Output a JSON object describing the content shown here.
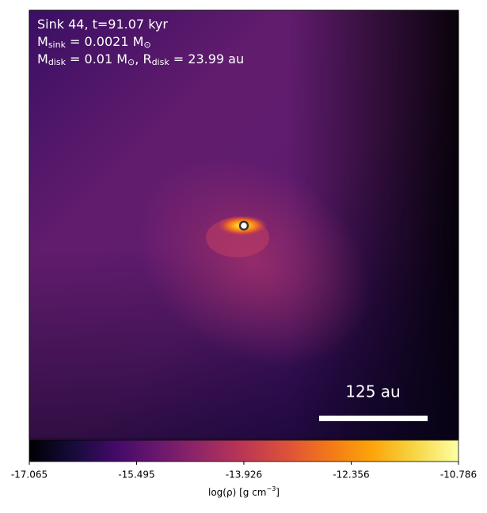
{
  "chart_data": {
    "type": "density-map",
    "annotations": [
      [
        "Sink 44, t=91.07 kyr"
      ],
      [
        "M",
        "sink",
        " = 0.0021 M",
        "⊙"
      ],
      [
        "M",
        "disk",
        " = 0.01 M",
        "⊙",
        ", R",
        "disk",
        " = 23.99 au"
      ]
    ],
    "scale_bar_label": "125 au",
    "colorbar": {
      "xlim": [
        -17.065,
        -10.786
      ],
      "xticks": [
        -17.065,
        -15.495,
        -13.926,
        -12.356,
        -10.786
      ],
      "xlabel": [
        "log(ρ) [g cm",
        "−3",
        "]"
      ],
      "colormap": "inferno"
    }
  }
}
